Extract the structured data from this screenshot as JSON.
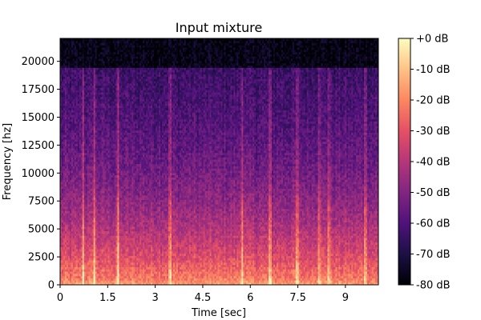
{
  "chart_data": {
    "type": "heatmap",
    "title": "Input mixture",
    "xlabel": "Time [sec]",
    "ylabel": "Frequency [hz]",
    "xlim": [
      0,
      10.04
    ],
    "ylim": [
      0,
      22050
    ],
    "x_ticks": [
      {
        "value": 0,
        "label": "0"
      },
      {
        "value": 1.5,
        "label": "1.5"
      },
      {
        "value": 3,
        "label": "3"
      },
      {
        "value": 4.5,
        "label": "4.5"
      },
      {
        "value": 6,
        "label": "6"
      },
      {
        "value": 7.5,
        "label": "7.5"
      },
      {
        "value": 9,
        "label": "9"
      }
    ],
    "y_ticks": [
      {
        "value": 0,
        "label": "0"
      },
      {
        "value": 2500,
        "label": "2500"
      },
      {
        "value": 5000,
        "label": "5000"
      },
      {
        "value": 7500,
        "label": "7500"
      },
      {
        "value": 10000,
        "label": "10000"
      },
      {
        "value": 12500,
        "label": "12500"
      },
      {
        "value": 15000,
        "label": "15000"
      },
      {
        "value": 17500,
        "label": "17500"
      },
      {
        "value": 20000,
        "label": "20000"
      }
    ],
    "colorbar": {
      "colormap": "magma",
      "range_db": [
        -80,
        0
      ],
      "ticks": [
        {
          "value": 0,
          "label": "+0 dB"
        },
        {
          "value": -10,
          "label": "-10 dB"
        },
        {
          "value": -20,
          "label": "-20 dB"
        },
        {
          "value": -30,
          "label": "-30 dB"
        },
        {
          "value": -40,
          "label": "-40 dB"
        },
        {
          "value": -50,
          "label": "-50 dB"
        },
        {
          "value": -60,
          "label": "-60 dB"
        },
        {
          "value": -70,
          "label": "-70 dB"
        },
        {
          "value": -80,
          "label": "-80 dB"
        }
      ]
    },
    "lowpass_cutoff_hz": 19400,
    "level_profile_db": [
      {
        "freq": 0,
        "db": -15
      },
      {
        "freq": 500,
        "db": -22
      },
      {
        "freq": 2500,
        "db": -32
      },
      {
        "freq": 5000,
        "db": -41
      },
      {
        "freq": 7500,
        "db": -48
      },
      {
        "freq": 10000,
        "db": -53
      },
      {
        "freq": 12500,
        "db": -57
      },
      {
        "freq": 15000,
        "db": -60
      },
      {
        "freq": 17500,
        "db": -62
      },
      {
        "freq": 19400,
        "db": -64
      },
      {
        "freq": 19450,
        "db": -77
      },
      {
        "freq": 22050,
        "db": -78
      }
    ],
    "transients_sec": [
      0.7,
      1.05,
      1.8,
      3.45,
      5.72,
      6.6,
      7.45,
      8.15,
      8.45,
      9.6
    ]
  }
}
